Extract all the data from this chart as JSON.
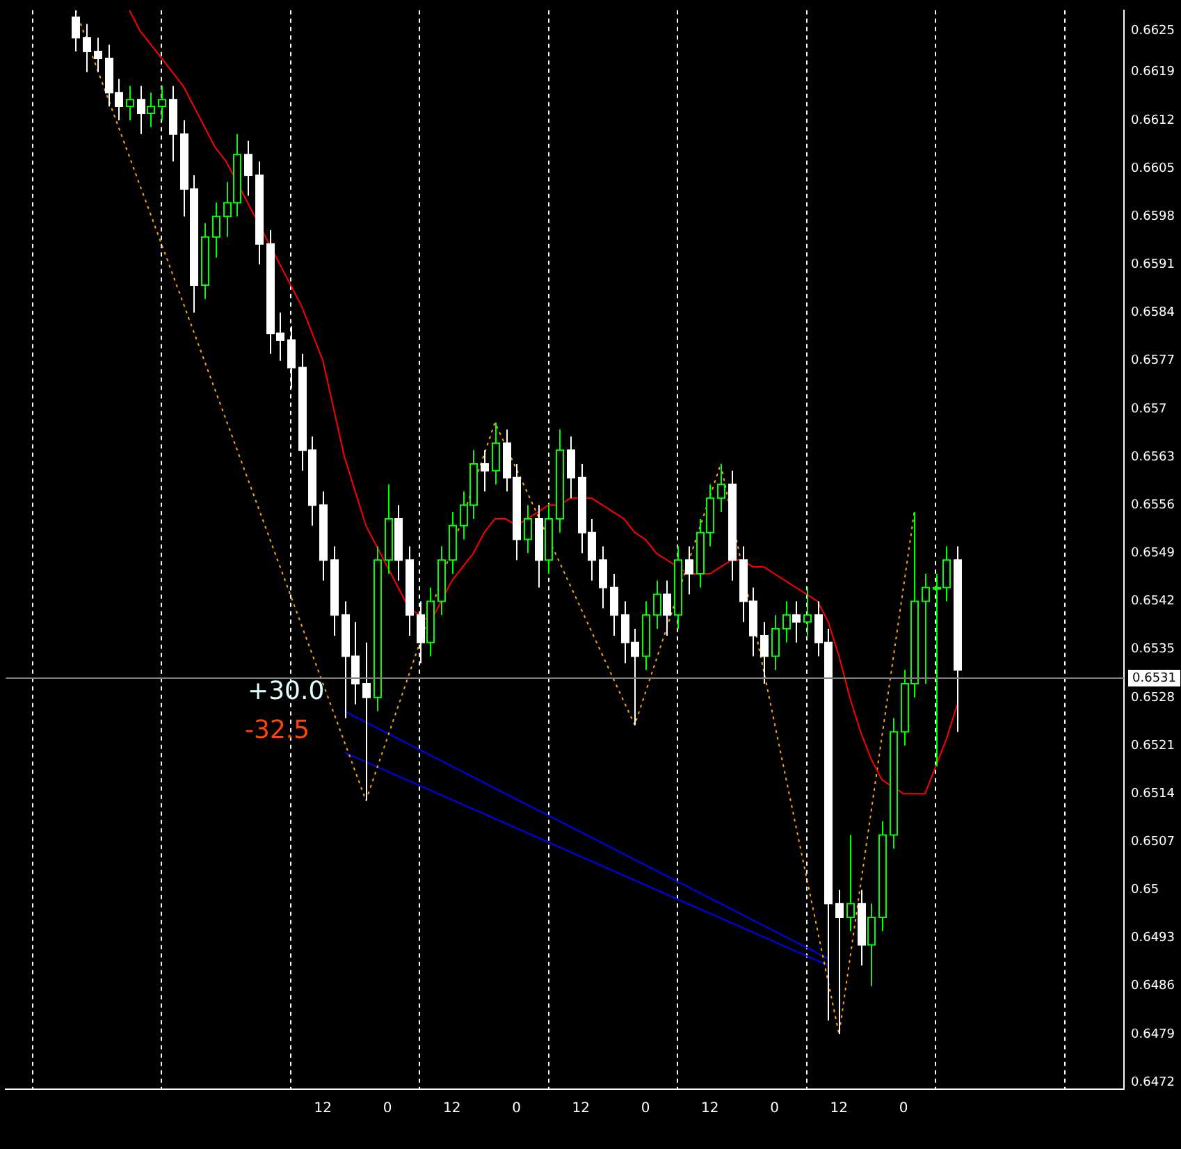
{
  "chart_data": {
    "type": "candlestick",
    "categories": [
      null,
      null,
      null,
      null,
      null,
      null,
      null,
      null,
      null,
      null,
      null,
      null,
      null,
      null,
      null,
      null,
      null,
      null,
      null,
      null,
      null,
      null,
      null,
      null,
      null,
      null,
      null,
      null,
      null,
      "12",
      null,
      null,
      null,
      null,
      null,
      "0",
      null,
      null,
      null,
      null,
      null,
      "12",
      null,
      null,
      null,
      null,
      null,
      "0",
      null,
      null,
      null,
      null,
      null,
      "12",
      null,
      null,
      null,
      null,
      null,
      "0",
      null,
      null,
      null,
      null,
      null,
      "12",
      null,
      null,
      null,
      null,
      null,
      "0",
      null,
      null,
      null,
      null,
      null,
      "12",
      null,
      null,
      null,
      null,
      null,
      "0",
      null,
      null,
      null,
      null,
      null,
      null,
      null,
      null,
      null,
      null,
      null,
      null,
      null,
      null,
      null,
      null,
      null,
      null,
      null,
      null
    ],
    "ohlc": [
      null,
      null,
      null,
      null,
      null,
      null,
      [
        0.6627,
        0.6628,
        0.6622,
        0.6624
      ],
      [
        0.6624,
        0.6626,
        0.6619,
        0.6622
      ],
      [
        0.6622,
        0.6624,
        0.6619,
        0.6621
      ],
      [
        0.6621,
        0.6623,
        0.6614,
        0.6616
      ],
      [
        0.6616,
        0.6618,
        0.6612,
        0.6614
      ],
      [
        0.6614,
        0.6617,
        0.6612,
        0.6615
      ],
      [
        0.6615,
        0.6617,
        0.661,
        0.6613
      ],
      [
        0.6613,
        0.6616,
        0.6611,
        0.6614
      ],
      [
        0.6614,
        0.6617,
        0.6612,
        0.6615
      ],
      [
        0.6615,
        0.6617,
        0.6606,
        0.661
      ],
      [
        0.661,
        0.6612,
        0.6598,
        0.6602
      ],
      [
        0.6602,
        0.6604,
        0.6584,
        0.6588
      ],
      [
        0.6588,
        0.6597,
        0.6586,
        0.6595
      ],
      [
        0.6595,
        0.66,
        0.6592,
        0.6598
      ],
      [
        0.6598,
        0.6603,
        0.6595,
        0.66
      ],
      [
        0.66,
        0.661,
        0.6598,
        0.6607
      ],
      [
        0.6607,
        0.6609,
        0.6601,
        0.6604
      ],
      [
        0.6604,
        0.6606,
        0.6591,
        0.6594
      ],
      [
        0.6594,
        0.6596,
        0.6578,
        0.6581
      ],
      [
        0.6581,
        0.6584,
        0.6577,
        0.658
      ],
      [
        0.658,
        0.6582,
        0.6573,
        0.6576
      ],
      [
        0.6576,
        0.6578,
        0.6561,
        0.6564
      ],
      [
        0.6564,
        0.6566,
        0.6553,
        0.6556
      ],
      [
        0.6556,
        0.6558,
        0.6545,
        0.6548
      ],
      [
        0.6548,
        0.655,
        0.6537,
        0.654
      ],
      [
        0.654,
        0.6542,
        0.6525,
        0.6534
      ],
      [
        0.6534,
        0.6539,
        0.6527,
        0.653
      ],
      [
        0.653,
        0.6536,
        0.6513,
        0.6528
      ],
      [
        0.6528,
        0.655,
        0.6526,
        0.6548
      ],
      [
        0.6548,
        0.6559,
        0.6546,
        0.6554
      ],
      [
        0.6554,
        0.6556,
        0.6545,
        0.6548
      ],
      [
        0.6548,
        0.655,
        0.6537,
        0.654
      ],
      [
        0.654,
        0.6542,
        0.6533,
        0.6536
      ],
      [
        0.6536,
        0.6544,
        0.6534,
        0.6542
      ],
      [
        0.6542,
        0.655,
        0.654,
        0.6548
      ],
      [
        0.6548,
        0.6555,
        0.6546,
        0.6553
      ],
      [
        0.6553,
        0.6558,
        0.6551,
        0.6556
      ],
      [
        0.6556,
        0.6564,
        0.6554,
        0.6562
      ],
      [
        0.6562,
        0.6564,
        0.6558,
        0.6561
      ],
      [
        0.6561,
        0.6568,
        0.6559,
        0.6565
      ],
      [
        0.6565,
        0.6567,
        0.6558,
        0.656
      ],
      [
        0.656,
        0.6562,
        0.6548,
        0.6551
      ],
      [
        0.6551,
        0.6556,
        0.6549,
        0.6554
      ],
      [
        0.6554,
        0.6556,
        0.6544,
        0.6548
      ],
      [
        0.6548,
        0.6556,
        0.6546,
        0.6554
      ],
      [
        0.6554,
        0.6567,
        0.6552,
        0.6564
      ],
      [
        0.6564,
        0.6566,
        0.6557,
        0.656
      ],
      [
        0.656,
        0.6562,
        0.6549,
        0.6552
      ],
      [
        0.6552,
        0.6554,
        0.6545,
        0.6548
      ],
      [
        0.6548,
        0.655,
        0.6541,
        0.6544
      ],
      [
        0.6544,
        0.6546,
        0.6537,
        0.654
      ],
      [
        0.654,
        0.6542,
        0.6533,
        0.6536
      ],
      [
        0.6536,
        0.6538,
        0.6524,
        0.6534
      ],
      [
        0.6534,
        0.6542,
        0.6532,
        0.654
      ],
      [
        0.654,
        0.6545,
        0.6538,
        0.6543
      ],
      [
        0.6543,
        0.6545,
        0.6537,
        0.654
      ],
      [
        0.654,
        0.655,
        0.6538,
        0.6548
      ],
      [
        0.6548,
        0.655,
        0.6543,
        0.6546
      ],
      [
        0.6546,
        0.6554,
        0.6544,
        0.6552
      ],
      [
        0.6552,
        0.6559,
        0.655,
        0.6557
      ],
      [
        0.6557,
        0.6562,
        0.6555,
        0.6559
      ],
      [
        0.6559,
        0.6561,
        0.6545,
        0.6548
      ],
      [
        0.6548,
        0.655,
        0.6539,
        0.6542
      ],
      [
        0.6542,
        0.6544,
        0.6534,
        0.6537
      ],
      [
        0.6537,
        0.6539,
        0.653,
        0.6534
      ],
      [
        0.6534,
        0.654,
        0.6532,
        0.6538
      ],
      [
        0.6538,
        0.6542,
        0.6536,
        0.654
      ],
      [
        0.654,
        0.6542,
        0.6536,
        0.6539
      ],
      [
        0.6539,
        0.6544,
        0.6537,
        0.654
      ],
      [
        0.654,
        0.6542,
        0.6534,
        0.6536
      ],
      [
        0.6536,
        0.6538,
        0.6481,
        0.6498
      ],
      [
        0.6498,
        0.65,
        0.6479,
        0.6496
      ],
      [
        0.6496,
        0.6508,
        0.6494,
        0.6498
      ],
      [
        0.6498,
        0.65,
        0.6489,
        0.6492
      ],
      [
        0.6492,
        0.6498,
        0.6486,
        0.6496
      ],
      [
        0.6496,
        0.651,
        0.6494,
        0.6508
      ],
      [
        0.6508,
        0.6525,
        0.6506,
        0.6523
      ],
      [
        0.6523,
        0.6532,
        0.6521,
        0.653
      ],
      [
        0.653,
        0.6555,
        0.6528,
        0.6542
      ],
      [
        0.6542,
        0.6546,
        0.653,
        0.6544
      ],
      [
        0.6544,
        0.6546,
        0.6518,
        0.6544
      ],
      [
        0.6544,
        0.655,
        0.6542,
        0.6548
      ],
      [
        0.6548,
        0.655,
        0.6523,
        0.6532
      ],
      null,
      null,
      null,
      null,
      null,
      null,
      null,
      null,
      null,
      null,
      null,
      null,
      null,
      null,
      null
    ],
    "series": [
      {
        "type": "line",
        "color": "#ff0000",
        "line_style": "solid",
        "values": [
          null,
          null,
          null,
          null,
          null,
          null,
          null,
          null,
          null,
          null,
          null,
          0.6628,
          0.6625,
          0.6623,
          0.6621,
          0.6619,
          0.6617,
          0.6614,
          0.6611,
          0.6608,
          0.6606,
          0.6603,
          0.66,
          0.6597,
          0.6594,
          0.6591,
          0.6588,
          0.6585,
          0.6581,
          0.6577,
          0.657,
          0.6563,
          0.6558,
          0.6553,
          0.655,
          0.6547,
          0.6544,
          0.6541,
          0.654,
          0.6539,
          0.6542,
          0.6545,
          0.6547,
          0.6549,
          0.6552,
          0.6554,
          0.6554,
          0.6553,
          0.6554,
          0.6555,
          0.6556,
          0.6556,
          0.6557,
          0.6557,
          0.6557,
          0.6556,
          0.6555,
          0.6554,
          0.6552,
          0.6551,
          0.6549,
          0.6548,
          0.6547,
          0.6546,
          0.6546,
          0.6546,
          0.6547,
          0.6548,
          0.6548,
          0.6547,
          0.6547,
          0.6546,
          0.6545,
          0.6544,
          0.6543,
          0.6542,
          0.6539,
          0.6534,
          0.6528,
          0.6523,
          0.6519,
          0.6516,
          0.6515,
          0.6514,
          0.6514,
          0.6514,
          0.6518,
          0.6522,
          0.6527,
          null,
          null,
          null,
          null,
          null,
          null,
          null,
          null,
          null,
          null,
          null,
          null,
          null,
          null,
          null
        ]
      },
      {
        "type": "line",
        "color": "#ffa500",
        "line_style": "dotted",
        "values": [
          null,
          null,
          null,
          null,
          null,
          null,
          0.6628,
          null,
          null,
          null,
          null,
          null,
          null,
          null,
          null,
          null,
          null,
          null,
          null,
          null,
          null,
          null,
          null,
          null,
          null,
          null,
          null,
          null,
          null,
          null,
          null,
          null,
          null,
          0.6513,
          null,
          null,
          null,
          null,
          null,
          null,
          null,
          null,
          null,
          null,
          null,
          0.6568,
          null,
          null,
          null,
          null,
          null,
          null,
          null,
          null,
          null,
          null,
          null,
          null,
          0.6524,
          null,
          null,
          null,
          null,
          null,
          null,
          null,
          0.6562,
          null,
          null,
          null,
          null,
          null,
          null,
          null,
          null,
          null,
          null,
          0.6479,
          null,
          null,
          null,
          null,
          null,
          null,
          0.6555,
          null,
          null,
          null,
          null,
          null,
          null,
          null,
          null,
          null,
          null,
          null,
          null,
          null,
          null,
          null,
          null,
          null,
          null,
          null
        ]
      },
      {
        "type": "line",
        "color": "#0000ff",
        "line_style": "solid",
        "values": [
          null,
          null,
          null,
          null,
          null,
          null,
          null,
          null,
          null,
          null,
          null,
          null,
          null,
          null,
          null,
          null,
          null,
          null,
          null,
          null,
          null,
          null,
          null,
          null,
          null,
          null,
          null,
          null,
          null,
          null,
          null,
          0.6526,
          null,
          null,
          null,
          null,
          null,
          null,
          null,
          null,
          null,
          null,
          null,
          null,
          null,
          null,
          null,
          null,
          null,
          null,
          null,
          null,
          null,
          null,
          null,
          null,
          null,
          null,
          null,
          null,
          null,
          null,
          null,
          null,
          null,
          null,
          null,
          null,
          null,
          null,
          null,
          null,
          null,
          null,
          null,
          null,
          0.649,
          null,
          null,
          null,
          null,
          null,
          null,
          null,
          null,
          null,
          null,
          null,
          null,
          null,
          null,
          null,
          null,
          null,
          null,
          null,
          null,
          null,
          null,
          null,
          null,
          null,
          null,
          null
        ]
      },
      {
        "type": "line",
        "color": "#0000ff",
        "line_style": "solid",
        "values": [
          null,
          null,
          null,
          null,
          null,
          null,
          null,
          null,
          null,
          null,
          null,
          null,
          null,
          null,
          null,
          null,
          null,
          null,
          null,
          null,
          null,
          null,
          null,
          null,
          null,
          null,
          null,
          null,
          null,
          null,
          null,
          0.652,
          null,
          null,
          null,
          null,
          null,
          null,
          null,
          null,
          null,
          null,
          null,
          null,
          null,
          null,
          null,
          null,
          null,
          null,
          null,
          null,
          null,
          null,
          null,
          null,
          null,
          null,
          null,
          null,
          null,
          null,
          null,
          null,
          null,
          null,
          null,
          null,
          null,
          null,
          null,
          null,
          null,
          null,
          null,
          null,
          0.6489,
          null,
          null,
          null,
          null,
          null,
          null,
          null,
          null,
          null,
          null,
          null,
          null,
          null,
          null,
          null,
          null,
          null,
          null,
          null,
          null,
          null,
          null,
          null,
          null,
          null,
          null,
          null
        ]
      }
    ],
    "ylim": [
      0.6471,
      0.6628
    ],
    "yticks": [
      0.6472,
      0.6479,
      0.6486,
      0.6493,
      0.65,
      0.6507,
      0.6514,
      0.6521,
      0.6528,
      0.6535,
      0.6542,
      0.6549,
      0.6556,
      0.6563,
      0.657,
      0.6577,
      0.6584,
      0.6591,
      0.6598,
      0.6605,
      0.6612,
      0.6619,
      0.6625
    ],
    "ref_lines": [
      {
        "axis": "y",
        "value": 0.6531,
        "label": "0.6531",
        "color": "#808080"
      }
    ],
    "annotations": [
      "+30.0",
      "-32.5"
    ],
    "grid": "x",
    "legend": false
  }
}
